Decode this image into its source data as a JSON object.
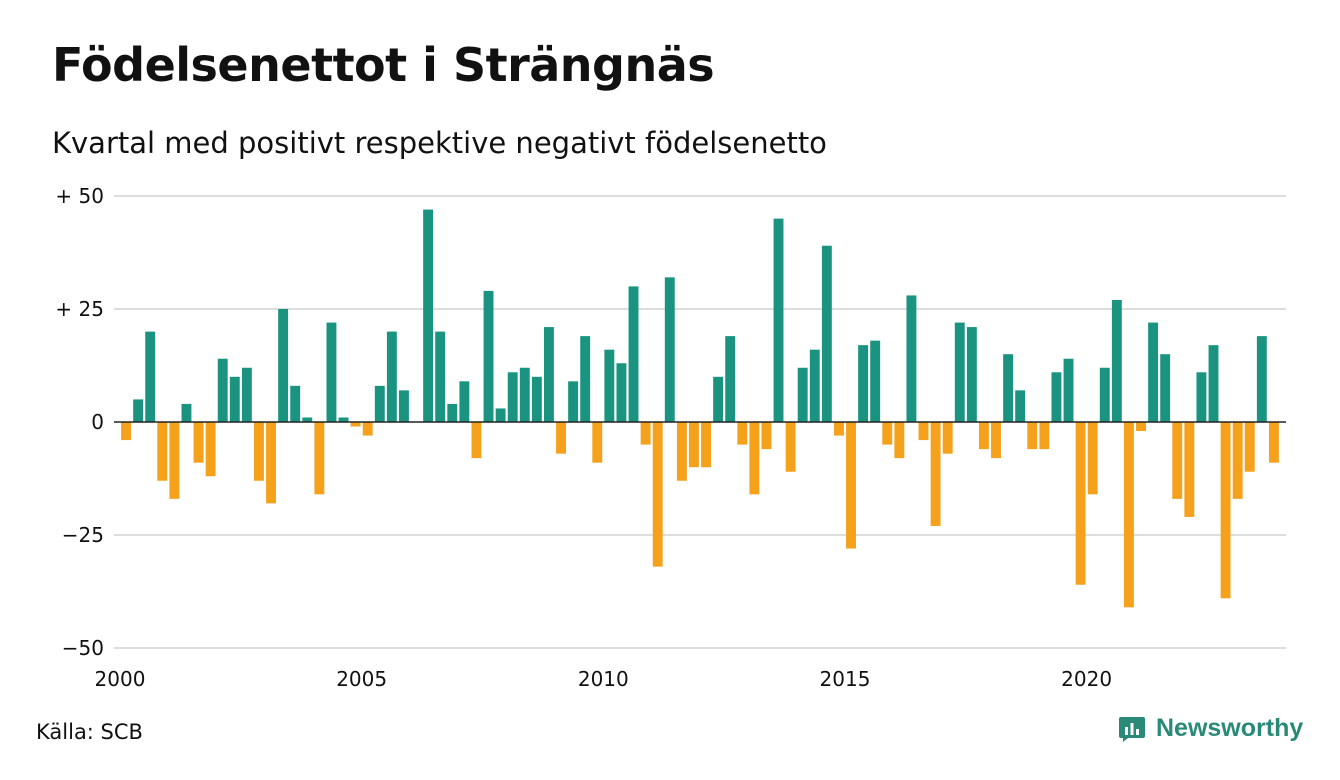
{
  "title": "Födelsenettot i Strängnäs",
  "subtitle": "Kvartal med positivt respektive negativt födelsenetto",
  "source": "Källa: SCB",
  "brand": {
    "name": "Newsworthy",
    "icon": "newsworthy-logo-icon",
    "color": "#2a8a78"
  },
  "colors": {
    "positive": "#1a9480",
    "negative": "#f5a11c",
    "grid": "#dddddd",
    "zero": "#222222"
  },
  "chart_data": {
    "type": "bar",
    "title": "Födelsenettot i Strängnäs",
    "subtitle": "Kvartal med positivt respektive negativt födelsenetto",
    "xlabel": "",
    "ylabel": "",
    "ylim": [
      -50,
      50
    ],
    "xlim": [
      2000,
      2024.125
    ],
    "y_ticks": [
      {
        "value": 50,
        "label": "+ 50"
      },
      {
        "value": 25,
        "label": "+ 25"
      },
      {
        "value": 0,
        "label": "0"
      },
      {
        "value": -25,
        "label": "−25"
      },
      {
        "value": -50,
        "label": "−50"
      }
    ],
    "x_ticks": [
      {
        "value": 2000,
        "label": "2000"
      },
      {
        "value": 2005,
        "label": "2005"
      },
      {
        "value": 2010,
        "label": "2010"
      },
      {
        "value": 2015,
        "label": "2015"
      },
      {
        "value": 2020,
        "label": "2020"
      }
    ],
    "grid": true,
    "legend": "none",
    "start_quarter": "2000 Q1",
    "series": [
      {
        "values": [
          -4,
          5,
          20,
          -13,
          -17,
          4,
          -9,
          -12,
          14,
          10,
          12,
          -13,
          -18,
          25,
          8,
          1,
          -16,
          22,
          1,
          -1,
          -3,
          8,
          20,
          7,
          0,
          47,
          20,
          4,
          9,
          -8,
          29,
          3,
          11,
          12,
          10,
          21,
          -7,
          9,
          19,
          -9,
          16,
          13,
          30,
          -5,
          -32,
          32,
          -13,
          -10,
          -10,
          10,
          19,
          -5,
          -16,
          -6,
          45,
          -11,
          12,
          16,
          39,
          -3,
          -28,
          17,
          18,
          -5,
          -8,
          28,
          -4,
          -23,
          -7,
          22,
          21,
          -6,
          -8,
          15,
          7,
          -6,
          -6,
          11,
          14,
          -36,
          -16,
          12,
          27,
          -41,
          -2,
          22,
          15,
          -17,
          -21,
          11,
          17,
          -39,
          -17,
          -11,
          19,
          -9
        ]
      }
    ]
  }
}
